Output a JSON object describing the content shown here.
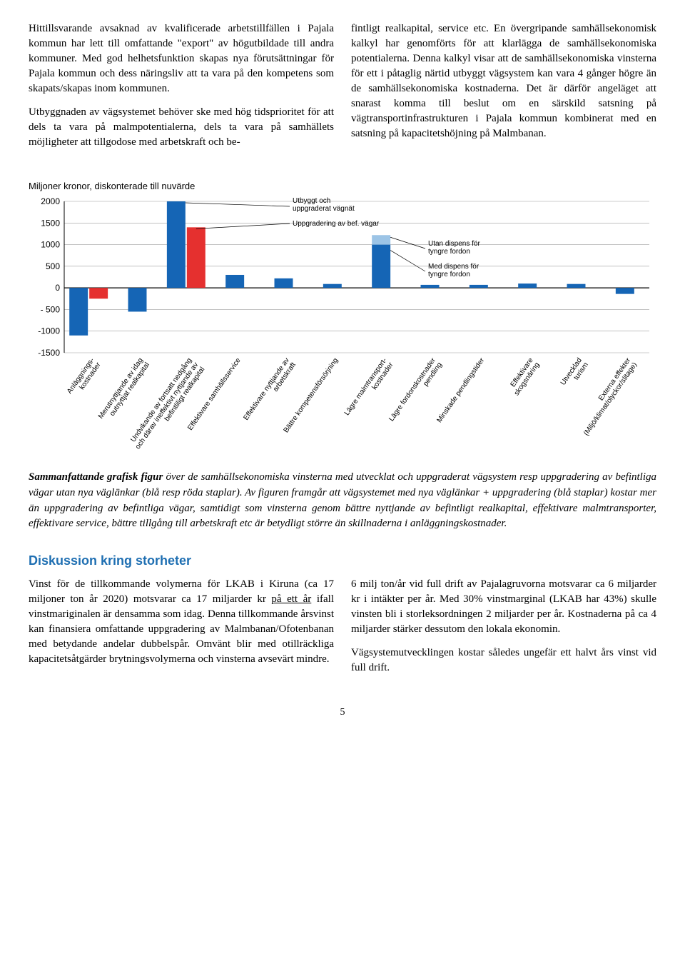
{
  "topText": {
    "left": {
      "para1": "Hittillsvarande avsaknad av kvalificerade arbetstillfällen i Pajala kommun har lett till omfattande \"export\" av högutbildade till andra kommuner. Med god helhetsfunktion skapas nya förutsättningar för Pajala kommun och dess näringsliv att ta vara på den kompetens som skapats/skapas inom kommunen.",
      "para2": "Utbyggnaden av vägsystemet behöver ske med hög tidsprioritet för att dels ta vara på malmpotentialerna, dels ta vara på samhällets möjligheter att tillgodose med arbetskraft och be-"
    },
    "right": {
      "para1": "fintligt realkapital, service etc. En övergripande samhällsekonomisk kalkyl har genomförts för att klarlägga de samhällsekonomiska potentialerna. Denna kalkyl visar att de samhällsekonomiska vinsterna för ett i påtaglig närtid utbyggt vägsystem kan vara 4 gånger högre än de samhällsekonomiska kostnaderna. Det är därför angeläget att snarast komma till beslut om en särskild satsning på vägtransportinfrastrukturen i Pajala kommun kombinerat med en satsning på kapacitetshöjning på Malmbanan."
    }
  },
  "chart": {
    "type": "bar",
    "title": "Miljoner kronor, diskonterade till nuvärde",
    "ylim_min": -1500,
    "ylim_max": 2000,
    "ytick_step": 500,
    "yticks": [
      "2000",
      "1500",
      "1000",
      "500",
      "0",
      "- 500",
      "-1000",
      "-1500"
    ],
    "background_color": "#ffffff",
    "axis_color": "#000000",
    "grid_color": "#9e9e9e",
    "categories": [
      "Anläggnings-\nkostnader",
      "Merutnyttjande av idag\noutnyttjat realkapital",
      "Undvikande av fortsatt nedgång\noch därav ineffektivt nyttjande av\nbefintliligt realkapital",
      "Effektivare samhällsservice",
      "Effektivare nyttjande av\narbetskraft",
      "Bättre kompetensförsörjning",
      "Lägre malmtransport-\nkostnader",
      "Lägre fordonskostnader\npendling",
      "Minskade pendlingstider",
      "Effektivare\nskogsnäring",
      "Utvecklad\nturism",
      "Externa effekter\n(Miljö/klimat/olyckor/slitage)"
    ],
    "series_blue": [
      -1100,
      -550,
      2000,
      300,
      220,
      90,
      1000,
      70,
      70,
      100,
      90,
      -140
    ],
    "series_red": [
      -250,
      0,
      1400,
      0,
      0,
      0,
      0,
      0,
      0,
      0,
      0,
      0
    ],
    "extra_light_blue_index": 6,
    "extra_light_blue_value": 220,
    "bar_colors": {
      "blue": "#1565b5",
      "red": "#e5302f",
      "light_blue": "#9cc4e6"
    },
    "bar_width": 0.38,
    "annotations": {
      "utbyggt": "Utbyggt och\nuppgraderat vägnät",
      "uppgradering": "Uppgradering av bef. vägar",
      "utan_dispens": "Utan dispens för\ntyngre fordon",
      "med_dispens": "Med dispens för\ntyngre fordon"
    },
    "annotation_fontsize": 10,
    "label_fontsize": 10,
    "title_fontsize": 13
  },
  "caption": {
    "lead": "Sammanfattande grafisk figur",
    "rest": " över de samhällsekonomiska vinsterna med utvecklat och uppgraderat vägsystem resp uppgradering av befintliga vägar utan nya väglänkar (blå resp röda staplar). Av figuren framgår att vägsystemet med nya väglänkar + uppgradering (blå staplar) kostar mer än uppgradering av befintliga vägar, samtidigt som vinsterna genom bättre nyttjande av befintligt realkapital, effektivare malmtransporter, effektivare service, bättre tillgång till arbetskraft etc är betydligt större än skillnaderna i anläggningskostnader."
  },
  "section": {
    "heading": "Diskussion kring storheter",
    "left": {
      "para1a": "Vinst för de tillkommande volymerna för LKAB i Kiruna (ca 17 miljoner ton år 2020) motsvarar ca 17 miljarder kr ",
      "para1u": "på ett år",
      "para1b": " ifall vinstmariginalen är densamma som idag. Denna tillkommande årsvinst kan finansiera omfattande uppgradering av Malmbanan/Ofotenbanan med betydande andelar dubbelspår. Omvänt blir med otillräckliga kapacitetsåtgärder brytningsvolymerna och vinsterna avsevärt mindre."
    },
    "right": {
      "para1": "6 milj ton/år vid full drift av Pajalagruvorna motsvarar ca 6 miljarder kr i intäkter per år. Med 30% vinstmarginal (LKAB har 43%) skulle vinsten bli i storleksordningen 2 miljarder per år. Kostnaderna på ca 4 miljarder stärker dessutom den lokala ekonomin.",
      "para2": "Vägsystemutvecklingen kostar således ungefär ett halvt års vinst vid full drift."
    }
  },
  "pageNumber": "5"
}
